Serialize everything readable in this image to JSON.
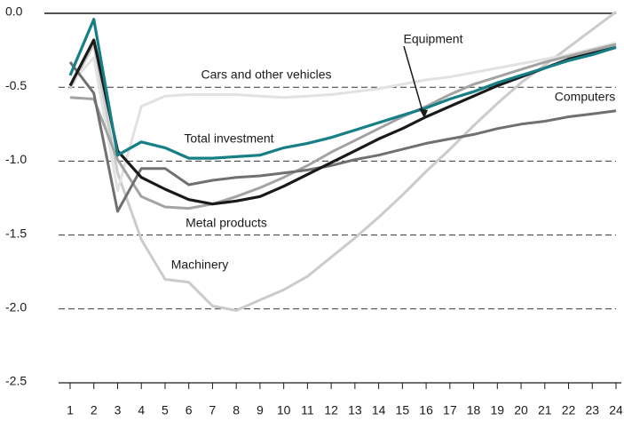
{
  "chart_data": {
    "type": "line",
    "x": [
      1,
      2,
      3,
      4,
      5,
      6,
      7,
      8,
      9,
      10,
      11,
      12,
      13,
      14,
      15,
      16,
      17,
      18,
      19,
      20,
      21,
      22,
      23,
      24
    ],
    "ylim": [
      -2.5,
      0
    ],
    "yticks": [
      {
        "value": 0,
        "label": "0.0"
      },
      -0.5,
      {
        "value": -1,
        "label": "-1.0"
      },
      -1.5,
      {
        "value": -2,
        "label": "-2.0"
      },
      -2.5
    ],
    "grid": true,
    "series": [
      {
        "name": "Machinery",
        "color": "#cbcbcb",
        "values": [
          -0.51,
          -0.21,
          -1.08,
          -1.53,
          -1.8,
          -1.82,
          -1.98,
          -2.01,
          -1.94,
          -1.87,
          -1.78,
          -1.65,
          -1.52,
          -1.38,
          -1.23,
          -1.07,
          -0.92,
          -0.76,
          -0.61,
          -0.47,
          -0.35,
          -0.23,
          -0.11,
          0.01
        ]
      },
      {
        "name": "Cars and other vehicles",
        "color": "#e2e2e2",
        "values": [
          -0.48,
          -0.3,
          -1.2,
          -0.63,
          -0.56,
          -0.55,
          -0.55,
          -0.55,
          -0.56,
          -0.57,
          -0.56,
          -0.55,
          -0.53,
          -0.51,
          -0.48,
          -0.45,
          -0.43,
          -0.4,
          -0.37,
          -0.34,
          -0.31,
          -0.28,
          -0.24,
          -0.2
        ]
      },
      {
        "name": "Metal products",
        "color": "#a3a3a3",
        "values": [
          -0.57,
          -0.58,
          -0.99,
          -1.24,
          -1.31,
          -1.32,
          -1.29,
          -1.24,
          -1.18,
          -1.11,
          -1.03,
          -0.94,
          -0.86,
          -0.78,
          -0.7,
          -0.63,
          -0.55,
          -0.48,
          -0.43,
          -0.38,
          -0.33,
          -0.29,
          -0.25,
          -0.21
        ]
      },
      {
        "name": "Computers",
        "color": "#707070",
        "values": [
          -0.33,
          -0.54,
          -1.34,
          -1.05,
          -1.05,
          -1.16,
          -1.13,
          -1.11,
          -1.1,
          -1.08,
          -1.06,
          -1.03,
          -0.99,
          -0.96,
          -0.92,
          -0.88,
          -0.85,
          -0.82,
          -0.78,
          -0.75,
          -0.73,
          -0.7,
          -0.68,
          -0.66
        ]
      },
      {
        "name": "Equipment",
        "color": "#1a1a1a",
        "values": [
          -0.49,
          -0.18,
          -0.93,
          -1.11,
          -1.19,
          -1.26,
          -1.29,
          -1.27,
          -1.24,
          -1.17,
          -1.09,
          -1.01,
          -0.93,
          -0.85,
          -0.78,
          -0.7,
          -0.63,
          -0.56,
          -0.49,
          -0.43,
          -0.37,
          -0.31,
          -0.27,
          -0.23
        ]
      },
      {
        "name": "Total investment",
        "color": "#167f86",
        "values": [
          -0.42,
          -0.04,
          -0.96,
          -0.87,
          -0.91,
          -0.98,
          -0.98,
          -0.97,
          -0.96,
          -0.91,
          -0.88,
          -0.84,
          -0.79,
          -0.74,
          -0.69,
          -0.64,
          -0.58,
          -0.53,
          -0.47,
          -0.42,
          -0.37,
          -0.32,
          -0.28,
          -0.23
        ]
      }
    ]
  }
}
